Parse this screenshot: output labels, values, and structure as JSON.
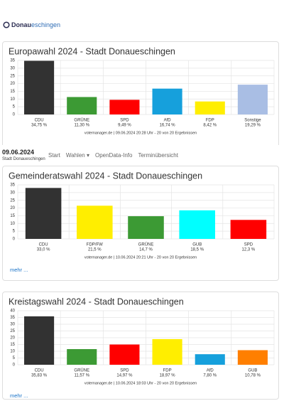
{
  "logo": {
    "part1": "Donau",
    "part2": "eschingen"
  },
  "navbar": {
    "date": "09.06.2024",
    "place": "Stadt Donaueschingen",
    "items": [
      "Start",
      "Wahlen ▾",
      "OpenData-Info",
      "Terminübersicht"
    ]
  },
  "chart_data": [
    {
      "type": "bar",
      "title": "Europawahl 2024 - Stadt Donaueschingen",
      "categories": [
        "CDU",
        "GRÜNE",
        "SPD",
        "AfD",
        "FDP",
        "Sonstige"
      ],
      "values": [
        34.75,
        11.3,
        9.49,
        16.74,
        8.42,
        19.29
      ],
      "value_labels": [
        "34,75 %",
        "11,30 %",
        "9,49 %",
        "16,74 %",
        "8,42 %",
        "19,29 %"
      ],
      "colors": [
        "#323232",
        "#3c9a34",
        "#ff0000",
        "#16a0dc",
        "#ffee00",
        "#a9bee4"
      ],
      "ylim": [
        0,
        35
      ],
      "yticks": [
        0,
        5,
        10,
        15,
        20,
        25,
        30,
        35
      ],
      "grid": true,
      "footer": "votemanager.de | 09.06.2024 20:28 Uhr - 20 von 20 Ergebnissen"
    },
    {
      "type": "bar",
      "title": "Gemeinderatswahl 2024 - Stadt Donaueschingen",
      "categories": [
        "CDU",
        "FDP/FW",
        "GRÜNE",
        "GUB",
        "SPD"
      ],
      "values": [
        33.0,
        21.5,
        14.7,
        18.5,
        12.3
      ],
      "value_labels": [
        "33,0 %",
        "21,5 %",
        "14,7 %",
        "18,5 %",
        "12,3 %"
      ],
      "colors": [
        "#323232",
        "#ffee00",
        "#3c9a34",
        "#00ffff",
        "#ff0000"
      ],
      "ylim": [
        0,
        35
      ],
      "yticks": [
        0,
        5,
        10,
        15,
        20,
        25,
        30,
        35
      ],
      "grid": true,
      "footer": "votemanager.de | 10.06.2024 20:21 Uhr - 20 von 20 Ergebnissen",
      "link": "mehr ..."
    },
    {
      "type": "bar",
      "title": "Kreistagswahl 2024 - Stadt Donaueschingen",
      "categories": [
        "CDU",
        "GRÜNE",
        "SPD",
        "FDP",
        "AfD",
        "GUB"
      ],
      "values": [
        35.83,
        11.57,
        14.97,
        18.97,
        7.8,
        10.78
      ],
      "value_labels": [
        "35,83 %",
        "11,57 %",
        "14,97 %",
        "18,97 %",
        "7,80 %",
        "10,78 %"
      ],
      "colors": [
        "#323232",
        "#3c9a34",
        "#ff0000",
        "#ffee00",
        "#16a0dc",
        "#ff7f00"
      ],
      "ylim": [
        0,
        40
      ],
      "yticks": [
        0,
        5,
        10,
        15,
        20,
        25,
        30,
        35,
        40
      ],
      "grid": true,
      "footer": "votemanager.de | 10.06.2024 18:03 Uhr - 20 von 20 Ergebnissen",
      "link": "mehr ..."
    }
  ]
}
